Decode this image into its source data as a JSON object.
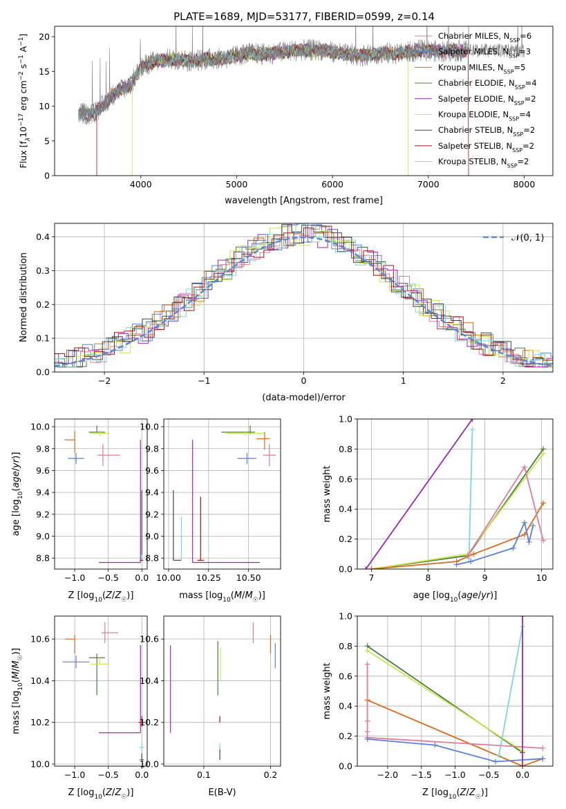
{
  "figure_title": "PLATE=1689, MJD=53177, FIBERID=0599, z=0.14",
  "colors": {
    "chabrier_miles": "#e07b9b",
    "salpeter_miles": "#5b7fd8",
    "kroupa_miles": "#d96a1c",
    "chabrier_elodie": "#4a7a45",
    "salpeter_elodie": "#9b27b0",
    "kroupa_elodie": "#c6e84a",
    "chabrier_stelib": "#444444",
    "salpeter_stelib": "#a01010",
    "kroupa_stelib": "#7fd6d6",
    "normal_curve": "#5b85d6"
  },
  "chart_data": [
    {
      "id": "spectrum",
      "type": "line",
      "xlabel": "wavelength [Angstrom, rest frame]",
      "ylabel": "Flux [f_λ 10^-17 erg cm^-2 s^-1 A^-1]",
      "ylabel_parts": {
        "main": "Flux [f",
        "sub_lambda": "λ",
        "ten": "10",
        "e17": "−17",
        "erg": " erg cm",
        "e2": "−2",
        "s": " s",
        "e1": "−1",
        "A": " A",
        "e1b": "−1",
        "close": "]"
      },
      "xlim": [
        3100,
        8300
      ],
      "ylim": [
        0,
        21.5
      ],
      "xticks": [
        "4000",
        "5000",
        "6000",
        "7000",
        "8000"
      ],
      "yticks": [
        "0",
        "5",
        "10",
        "15",
        "20"
      ],
      "legend": [
        {
          "label": "Chabrier MILES, N",
          "sub": "SSP",
          "count": "=6",
          "color_key": "chabrier_miles"
        },
        {
          "label": "Salpeter MILES, N",
          "sub": "SSP",
          "count": "=3",
          "color_key": "salpeter_miles"
        },
        {
          "label": "Kroupa MILES, N",
          "sub": "SSP",
          "count": "=5",
          "color_key": "kroupa_miles"
        },
        {
          "label": "Chabrier ELODIE, N",
          "sub": "SSP",
          "count": "=4",
          "color_key": "chabrier_elodie"
        },
        {
          "label": "Salpeter ELODIE, N",
          "sub": "SSP",
          "count": "=2",
          "color_key": "salpeter_elodie"
        },
        {
          "label": "Kroupa ELODIE, N",
          "sub": "SSP",
          "count": "=4",
          "color_key": "kroupa_elodie"
        },
        {
          "label": "Chabrier STELIB, N",
          "sub": "SSP",
          "count": "=2",
          "color_key": "chabrier_stelib"
        },
        {
          "label": "Salpeter STELIB, N",
          "sub": "SSP",
          "count": "=2",
          "color_key": "salpeter_stelib"
        },
        {
          "label": "Kroupa STELIB, N",
          "sub": "SSP",
          "count": "=2",
          "color_key": "kroupa_stelib"
        }
      ],
      "continuum": [
        [
          3350,
          9.0
        ],
        [
          3500,
          8.8
        ],
        [
          3600,
          10.0
        ],
        [
          3700,
          11.5
        ],
        [
          3800,
          12.5
        ],
        [
          3900,
          13.2
        ],
        [
          4000,
          15.5
        ],
        [
          4100,
          16.3
        ],
        [
          4300,
          16.8
        ],
        [
          4500,
          16.5
        ],
        [
          4700,
          16.8
        ],
        [
          4900,
          16.9
        ],
        [
          5100,
          17.6
        ],
        [
          5300,
          17.5
        ],
        [
          5600,
          18.0
        ],
        [
          5900,
          18.1
        ],
        [
          6100,
          17.5
        ],
        [
          6300,
          17.3
        ],
        [
          6500,
          17.6
        ],
        [
          6700,
          17.6
        ],
        [
          6900,
          18.0
        ],
        [
          7100,
          17.9
        ],
        [
          7400,
          18.0
        ]
      ],
      "model_edges": [
        {
          "start": 3540,
          "color_key": "salpeter_stelib"
        },
        {
          "start": 3910,
          "color_key": "kroupa_elodie"
        },
        {
          "end": 6790,
          "color_key": "kroupa_elodie"
        },
        {
          "end": 7420,
          "color_key": "salpeter_stelib"
        }
      ]
    },
    {
      "id": "residuals",
      "type": "histogram",
      "xlabel": "(data-model)/error",
      "ylabel": "Normed distribution",
      "xlim": [
        -2.5,
        2.5
      ],
      "ylim": [
        0,
        0.44
      ],
      "xticks": [
        "−2",
        "−1",
        "0",
        "1",
        "2"
      ],
      "yticks": [
        "0.0",
        "0.1",
        "0.2",
        "0.3",
        "0.4"
      ],
      "legend_label": "𝒩(0, 1)",
      "series_color_keys": [
        "chabrier_miles",
        "salpeter_miles",
        "kroupa_miles",
        "chabrier_elodie",
        "salpeter_elodie",
        "kroupa_elodie",
        "chabrier_stelib",
        "salpeter_stelib",
        "kroupa_stelib"
      ]
    },
    {
      "id": "age-vs-Z",
      "type": "errorbar",
      "xlabel": "Z [log10(Z/Z☉)]",
      "ylabel": "age [log10(age/yr)]",
      "xlim": [
        -1.3,
        0.08
      ],
      "ylim": [
        8.7,
        10.07
      ],
      "xticks": [
        "−1.0",
        "−0.5",
        "0.0"
      ],
      "yticks": [
        "8.8",
        "9.0",
        "9.2",
        "9.4",
        "9.6",
        "9.8",
        "10.0"
      ],
      "points": [
        {
          "color_key": "kroupa_miles",
          "x": -1.0,
          "xerr": [
            0.15,
            0.0
          ],
          "y": 9.88,
          "yerr": [
            0.12,
            0.08
          ]
        },
        {
          "color_key": "salpeter_miles",
          "x": -0.98,
          "xerr": [
            0.12,
            0.12
          ],
          "y": 9.71,
          "yerr": [
            0.05,
            0.05
          ]
        },
        {
          "color_key": "chabrier_miles",
          "x": -0.58,
          "xerr": [
            0.08,
            0.25
          ],
          "y": 9.74,
          "yerr": [
            0.1,
            0.1
          ]
        },
        {
          "color_key": "chabrier_elodie",
          "x": -0.67,
          "xerr": [
            0.12,
            0.12
          ],
          "y": 9.95,
          "yerr": [
            0.0,
            0.06
          ]
        },
        {
          "color_key": "kroupa_elodie",
          "x": -0.62,
          "xerr": [
            0.15,
            0.13
          ],
          "y": 9.94,
          "yerr": [
            0.03,
            0.03
          ]
        },
        {
          "color_key": "salpeter_elodie",
          "x": -0.02,
          "xerr": [
            0.62,
            0.0
          ],
          "y": 8.76,
          "yerr": [
            0.0,
            1.12
          ]
        },
        {
          "color_key": "chabrier_stelib",
          "x": 0.0,
          "xerr": [
            0.03,
            0.01
          ],
          "y": 8.78,
          "yerr": [
            0.0,
            0.64
          ]
        },
        {
          "color_key": "kroupa_stelib",
          "x": 0.0,
          "xerr": [
            0.02,
            0.02
          ],
          "y": 8.78,
          "yerr": [
            0.0,
            0.05
          ]
        },
        {
          "color_key": "salpeter_stelib",
          "x": 0.0,
          "xerr": [
            0.02,
            0.02
          ],
          "y": 8.78,
          "yerr": [
            0.0,
            0.0
          ]
        }
      ]
    },
    {
      "id": "age-vs-mass",
      "type": "errorbar",
      "xlabel": "mass [log10(M/M☉)]",
      "ylabel": "",
      "xlim": [
        9.97,
        10.7
      ],
      "ylim": [
        8.7,
        10.07
      ],
      "xticks": [
        "10.00",
        "10.25",
        "10.50"
      ],
      "yticks": [
        "8.8",
        "9.0",
        "9.2",
        "9.4",
        "9.6",
        "9.8",
        "10.0"
      ],
      "points": [
        {
          "color_key": "chabrier_elodie",
          "x": 10.51,
          "xerr": [
            0.18,
            0.03
          ],
          "y": 9.95,
          "yerr": [
            0.02,
            0.06
          ]
        },
        {
          "color_key": "kroupa_elodie",
          "x": 10.48,
          "xerr": [
            0.12,
            0.12
          ],
          "y": 9.94,
          "yerr": [
            0.02,
            0.02
          ]
        },
        {
          "color_key": "kroupa_miles",
          "x": 10.6,
          "xerr": [
            0.05,
            0.03
          ],
          "y": 9.89,
          "yerr": [
            0.1,
            0.06
          ]
        },
        {
          "color_key": "salpeter_miles",
          "x": 10.49,
          "xerr": [
            0.06,
            0.06
          ],
          "y": 9.71,
          "yerr": [
            0.05,
            0.05
          ]
        },
        {
          "color_key": "chabrier_miles",
          "x": 10.63,
          "xerr": [
            0.04,
            0.04
          ],
          "y": 9.74,
          "yerr": [
            0.1,
            0.1
          ]
        },
        {
          "color_key": "salpeter_elodie",
          "x": 10.15,
          "xerr": [
            0.0,
            0.42
          ],
          "y": 8.76,
          "yerr": [
            0.0,
            1.12
          ]
        },
        {
          "color_key": "chabrier_stelib",
          "x": 10.03,
          "xerr": [
            0.0,
            0.05
          ],
          "y": 8.78,
          "yerr": [
            0.0,
            0.64
          ]
        },
        {
          "color_key": "kroupa_stelib",
          "x": 10.08,
          "xerr": [
            0.0,
            0.0
          ],
          "y": 8.78,
          "yerr": [
            0.0,
            0.4
          ]
        },
        {
          "color_key": "salpeter_stelib",
          "x": 10.2,
          "xerr": [
            0.02,
            0.02
          ],
          "y": 8.78,
          "yerr": [
            0.0,
            0.58
          ]
        }
      ]
    },
    {
      "id": "mass-weight-vs-age",
      "type": "line",
      "xlabel": "age [log10(age/yr)]",
      "ylabel": "mass weight",
      "xlim": [
        6.75,
        10.2
      ],
      "ylim": [
        0,
        1.0
      ],
      "xticks": [
        "7",
        "8",
        "9",
        "10"
      ],
      "yticks": [
        "0.0",
        "0.2",
        "0.4",
        "0.6",
        "0.8",
        "1.0"
      ],
      "series": [
        {
          "color_key": "salpeter_elodie",
          "x": [
            6.9,
            8.78
          ],
          "y": [
            0.0,
            1.0
          ]
        },
        {
          "color_key": "kroupa_stelib",
          "x": [
            8.72,
            8.78
          ],
          "y": [
            0.07,
            0.93
          ]
        },
        {
          "color_key": "chabrier_elodie",
          "x": [
            7.0,
            8.7,
            10.03
          ],
          "y": [
            0.0,
            0.09,
            0.8
          ]
        },
        {
          "color_key": "kroupa_elodie",
          "x": [
            7.0,
            8.7,
            10.03
          ],
          "y": [
            0.0,
            0.1,
            0.77
          ]
        },
        {
          "color_key": "kroupa_miles",
          "x": [
            7.0,
            8.5,
            8.8,
            9.7,
            10.03
          ],
          "y": [
            0.0,
            0.05,
            0.1,
            0.23,
            0.44
          ]
        },
        {
          "color_key": "chabrier_miles",
          "x": [
            8.7,
            9.7,
            10.03
          ],
          "y": [
            0.09,
            0.68,
            0.19
          ]
        },
        {
          "color_key": "salpeter_miles",
          "x": [
            8.5,
            8.75,
            9.5,
            9.7,
            9.78,
            9.85
          ],
          "y": [
            0.03,
            0.05,
            0.14,
            0.31,
            0.18,
            0.29
          ]
        }
      ]
    },
    {
      "id": "mass-vs-Z",
      "type": "errorbar",
      "xlabel": "Z [log10(Z/Z☉)]",
      "ylabel": "mass [log10(M/M☉)]",
      "xlim": [
        -1.3,
        0.08
      ],
      "ylim": [
        9.99,
        10.71
      ],
      "xticks": [
        "−1.0",
        "−0.5",
        "0.0"
      ],
      "yticks": [
        "10.0",
        "10.2",
        "10.4",
        "10.6"
      ],
      "points": [
        {
          "color_key": "kroupa_miles",
          "x": -1.0,
          "xerr": [
            0.15,
            0.0
          ],
          "y": 10.6,
          "yerr": [
            0.07,
            0.02
          ]
        },
        {
          "color_key": "chabrier_miles",
          "x": -0.55,
          "xerr": [
            0.05,
            0.2
          ],
          "y": 10.63,
          "yerr": [
            0.05,
            0.05
          ]
        },
        {
          "color_key": "chabrier_elodie",
          "x": -0.67,
          "xerr": [
            0.12,
            0.12
          ],
          "y": 10.51,
          "yerr": [
            0.18,
            0.02
          ]
        },
        {
          "color_key": "kroupa_elodie",
          "x": -0.63,
          "xerr": [
            0.14,
            0.13
          ],
          "y": 10.48,
          "yerr": [
            0.0,
            0.03
          ]
        },
        {
          "color_key": "salpeter_miles",
          "x": -0.98,
          "xerr": [
            0.2,
            0.2
          ],
          "y": 10.49,
          "yerr": [
            0.03,
            0.03
          ]
        },
        {
          "color_key": "salpeter_elodie",
          "x": -0.02,
          "xerr": [
            0.62,
            0.0
          ],
          "y": 10.15,
          "yerr": [
            0.0,
            0.42
          ]
        },
        {
          "color_key": "salpeter_stelib",
          "x": 0.0,
          "xerr": [
            0.05,
            0.05
          ],
          "y": 10.2,
          "yerr": [
            0.02,
            0.03
          ]
        },
        {
          "color_key": "kroupa_stelib",
          "x": 0.0,
          "xerr": [
            0.04,
            0.04
          ],
          "y": 10.08,
          "yerr": [
            0.03,
            0.03
          ]
        },
        {
          "color_key": "chabrier_stelib",
          "x": 0.0,
          "xerr": [
            0.03,
            0.03
          ],
          "y": 10.02,
          "yerr": [
            0.0,
            0.03
          ]
        }
      ]
    },
    {
      "id": "mass-vs-ebv",
      "type": "errorbar",
      "xlabel": "E(B-V)",
      "ylabel": "",
      "xlim": [
        0.04,
        0.215
      ],
      "ylim": [
        9.99,
        10.71
      ],
      "xticks": [
        "0.1",
        "0.2"
      ],
      "yticks": [
        "10.0",
        "10.2",
        "10.4",
        "10.6"
      ],
      "points": [
        {
          "color_key": "salpeter_elodie",
          "x": 0.05,
          "xerr": [
            0,
            0
          ],
          "y": 10.15,
          "yerr": [
            0.0,
            0.42
          ]
        },
        {
          "color_key": "chabrier_elodie",
          "x": 0.121,
          "xerr": [
            0,
            0
          ],
          "y": 10.51,
          "yerr": [
            0.18,
            0.08
          ]
        },
        {
          "color_key": "kroupa_elodie",
          "x": 0.125,
          "xerr": [
            0,
            0
          ],
          "y": 10.48,
          "yerr": [
            0.08,
            0.08
          ]
        },
        {
          "color_key": "salpeter_stelib",
          "x": 0.124,
          "xerr": [
            0,
            0
          ],
          "y": 10.2,
          "yerr": [
            0.0,
            0.03
          ]
        },
        {
          "color_key": "kroupa_stelib",
          "x": 0.124,
          "xerr": [
            0,
            0
          ],
          "y": 10.08,
          "yerr": [
            0.02,
            0.02
          ]
        },
        {
          "color_key": "chabrier_stelib",
          "x": 0.124,
          "xerr": [
            0,
            0
          ],
          "y": 10.03,
          "yerr": [
            0.01,
            0.04
          ]
        },
        {
          "color_key": "chabrier_miles",
          "x": 0.174,
          "xerr": [
            0,
            0
          ],
          "y": 10.63,
          "yerr": [
            0.05,
            0.05
          ]
        },
        {
          "color_key": "kroupa_miles",
          "x": 0.2,
          "xerr": [
            0,
            0
          ],
          "y": 10.6,
          "yerr": [
            0.07,
            0.02
          ]
        },
        {
          "color_key": "salpeter_miles",
          "x": 0.207,
          "xerr": [
            0,
            0
          ],
          "y": 10.49,
          "yerr": [
            0.03,
            0.09
          ]
        }
      ]
    },
    {
      "id": "mass-weight-vs-Z",
      "type": "line",
      "xlabel": "Z [log10(Z/Z☉)]",
      "ylabel": "mass weight",
      "xlim": [
        -2.45,
        0.45
      ],
      "ylim": [
        0,
        1.0
      ],
      "xticks": [
        "−2.0",
        "−1.5",
        "−1.0",
        "−0.5",
        "0.0"
      ],
      "yticks": [
        "0.0",
        "0.2",
        "0.4",
        "0.6",
        "0.8",
        "1.0"
      ],
      "series": [
        {
          "color_key": "chabrier_elodie",
          "x": [
            -2.3,
            0.0
          ],
          "y": [
            0.8,
            0.09
          ]
        },
        {
          "color_key": "kroupa_elodie",
          "x": [
            -2.3,
            0.0
          ],
          "y": [
            0.77,
            0.1
          ]
        },
        {
          "color_key": "kroupa_miles",
          "x": [
            -2.3,
            0.0,
            0.3
          ],
          "y": [
            0.44,
            0.0,
            0.05
          ]
        },
        {
          "color_key": "chabrier_miles",
          "x": [
            -2.3,
            -2.3,
            -2.3,
            -2.3,
            0.3
          ],
          "y": [
            0.68,
            0.3,
            0.23,
            0.19,
            0.12
          ]
        },
        {
          "color_key": "salpeter_miles",
          "x": [
            -2.3,
            -1.3,
            -0.4,
            0.3
          ],
          "y": [
            0.18,
            0.14,
            0.03,
            0.05
          ]
        },
        {
          "color_key": "kroupa_stelib",
          "x": [
            -0.35,
            0.0
          ],
          "y": [
            0.07,
            0.93
          ]
        },
        {
          "color_key": "salpeter_elodie",
          "x": [
            0.0,
            0.0
          ],
          "y": [
            0.0,
            1.0
          ]
        }
      ]
    }
  ]
}
